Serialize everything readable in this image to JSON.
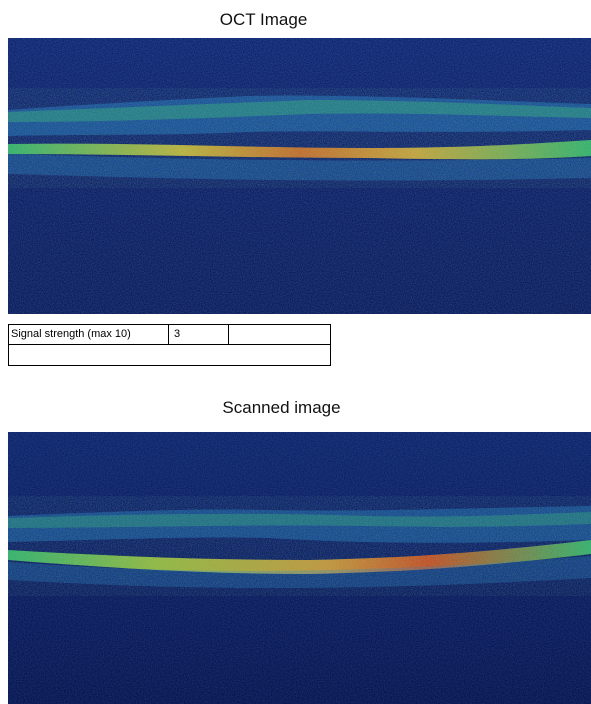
{
  "titles": {
    "top": "OCT Image",
    "bottom": "Scanned image"
  },
  "signal": {
    "label": "Signal strength (max 10)",
    "value": "3"
  },
  "colors": {
    "background": "#0a1a5a",
    "deep_background": "#06124a",
    "layer_low": "#2a86c8",
    "layer_mid": "#3fc870",
    "layer_high": "#e0c83a",
    "layer_peak": "#e05a20"
  }
}
